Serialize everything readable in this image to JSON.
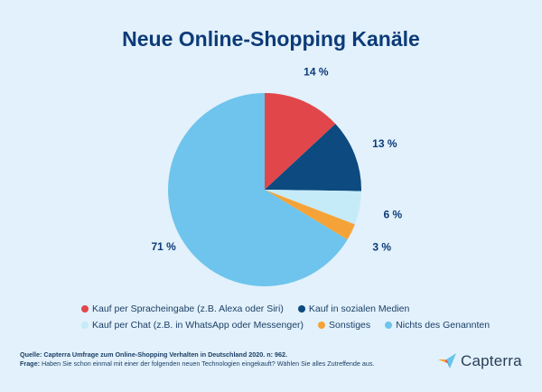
{
  "title": "Neue Online-Shopping Kanäle",
  "chart_data": {
    "type": "pie",
    "slices": [
      {
        "label": "Kauf per Spracheingabe (z.B. Alexa oder Siri)",
        "value": 14,
        "display": "14 %",
        "color": "#e1474a"
      },
      {
        "label": "Kauf in sozialen Medien",
        "value": 13,
        "display": "13 %",
        "color": "#0c4a7f"
      },
      {
        "label": "Kauf per Chat (z.B. in WhatsApp oder Messenger)",
        "value": 6,
        "display": "6 %",
        "color": "#c6ebf8"
      },
      {
        "label": "Sonstiges",
        "value": 3,
        "display": "3 %",
        "color": "#f5a338"
      },
      {
        "label": "Nichts des Genannten",
        "value": 71,
        "display": "71 %",
        "color": "#6ec4ec"
      }
    ]
  },
  "footer": {
    "source_label": "Quelle:",
    "source_text": "Capterra Umfrage zum Online-Shopping Verhalten in Deutschland 2020. n: 962.",
    "question_label": "Frage:",
    "question_text": "Haben Sie schon einmal mit einer der folgenden neuen Technologien eingekauft? Wählen Sie alles Zutreffende aus."
  },
  "brand": {
    "name": "Capterra"
  }
}
